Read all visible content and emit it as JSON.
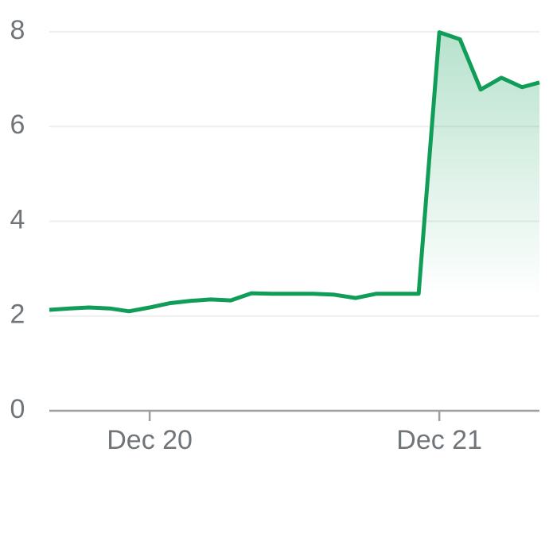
{
  "chart_data": {
    "type": "line",
    "color": "#0f9d58",
    "grid": true,
    "x": [
      0,
      1,
      1.92,
      2.92,
      3.85,
      4.85,
      5.81,
      6.85,
      7.81,
      8.77,
      9.77,
      10.77,
      11.77,
      12.77,
      13.77,
      14.81,
      15.81,
      16.85,
      17.85,
      18.85,
      19.85,
      20.85,
      21.85,
      22.85,
      23.69
    ],
    "values": [
      2.13,
      2.16,
      2.18,
      2.16,
      2.1,
      2.18,
      2.27,
      2.32,
      2.35,
      2.33,
      2.48,
      2.47,
      2.47,
      2.47,
      2.45,
      2.38,
      2.47,
      2.47,
      2.47,
      7.99,
      7.84,
      6.78,
      7.03,
      6.83,
      6.93
    ],
    "xlim": [
      0,
      23.69
    ],
    "xticks": [
      {
        "value": 4.85,
        "label": "Dec 20"
      },
      {
        "value": 18.85,
        "label": "Dec 21"
      }
    ],
    "ylim": [
      0,
      8
    ],
    "yticks": [
      0,
      2,
      4,
      6,
      8
    ]
  }
}
